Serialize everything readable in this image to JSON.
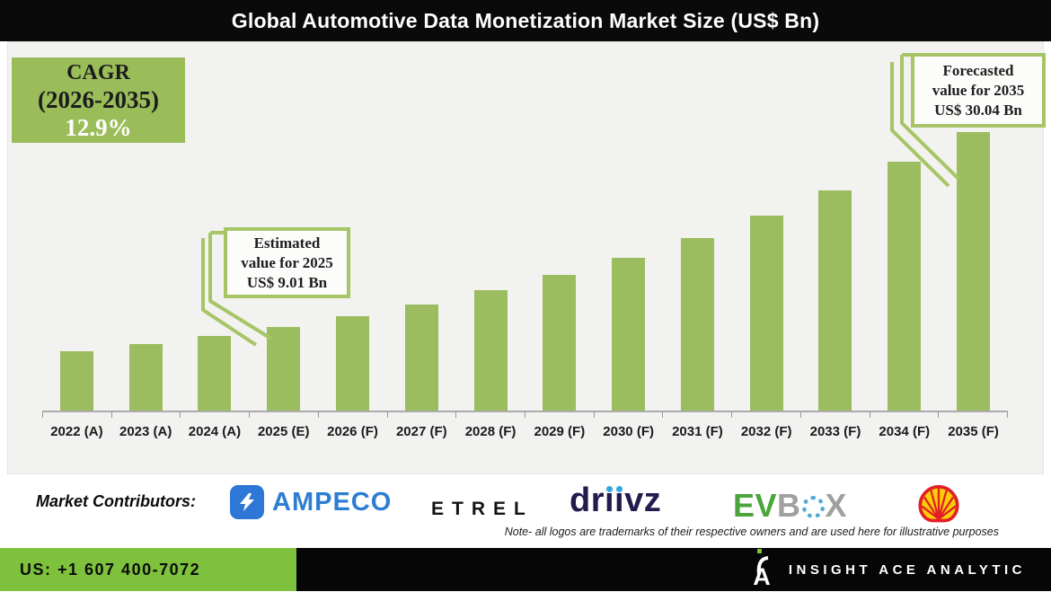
{
  "title": "Global Automotive Data Monetization Market Size (US$ Bn)",
  "cagr_box": {
    "title": "CAGR",
    "range": "(2026-2035)",
    "value": "12.9%"
  },
  "callouts": {
    "estimated": {
      "lines": [
        "Estimated",
        "value for 2025",
        "US$ 9.01 Bn"
      ]
    },
    "forecasted": {
      "lines": [
        "Forecasted",
        "value for 2035",
        "US$ 30.04 Bn"
      ]
    }
  },
  "chart_data": {
    "type": "bar",
    "title": "Global Automotive Data Monetization Market Size (US$ Bn)",
    "unit": "US$ Bn",
    "categories": [
      "2022 (A)",
      "2023 (A)",
      "2024 (A)",
      "2025 (E)",
      "2026 (F)",
      "2027 (F)",
      "2028 (F)",
      "2029 (F)",
      "2030 (F)",
      "2031 (F)",
      "2032 (F)",
      "2033 (F)",
      "2034 (F)",
      "2035 (F)"
    ],
    "values": [
      6.41,
      7.19,
      8.07,
      9.01,
      10.17,
      11.48,
      12.96,
      14.63,
      16.52,
      18.65,
      21.05,
      23.77,
      26.83,
      30.04
    ],
    "labeled_points": [
      {
        "category": "2025 (E)",
        "value": 9.01,
        "label": "Estimated value for 2025 US$ 9.01 Bn"
      },
      {
        "category": "2035 (F)",
        "value": 30.04,
        "label": "Forecasted value for 2035 US$ 30.04 Bn"
      }
    ],
    "cagr": {
      "period": "2026-2035",
      "value": "12.9%"
    },
    "ylim": [
      0,
      31
    ],
    "grid": false,
    "legend": "none",
    "bar_color": "#9cbd5f"
  },
  "contributors": {
    "label": "Market Contributors:",
    "note": "Note- all logos are trademarks of their respective owners and are used here for illustrative purposes",
    "ampeco": {
      "name": "AMPECO"
    },
    "etrel": {
      "name": "ETREL"
    },
    "driivz": {
      "prefix": "dr",
      "dotless": "ıı",
      "suffix": "vz"
    },
    "evbox": {
      "green": "EV",
      "gray_b": "B",
      "gray_x": "X"
    },
    "logo_names": [
      "ampeco-logo",
      "etrel-logo",
      "driivz-logo",
      "evbox-logo",
      "shell-pecten-logo"
    ]
  },
  "footer": {
    "phone": "US: +1 607 400-7072",
    "brand": "INSIGHT ACE ANALYTIC",
    "logo_icon": "insight-ace-a-logo"
  },
  "colors": {
    "bar": "#9cbd5f",
    "accent_green": "#9abd5a",
    "callout_border": "#a7c566",
    "footer_green": "#7ec13d",
    "title_bg": "#0a0a0a",
    "panel_bg": "#f2f2f0"
  }
}
